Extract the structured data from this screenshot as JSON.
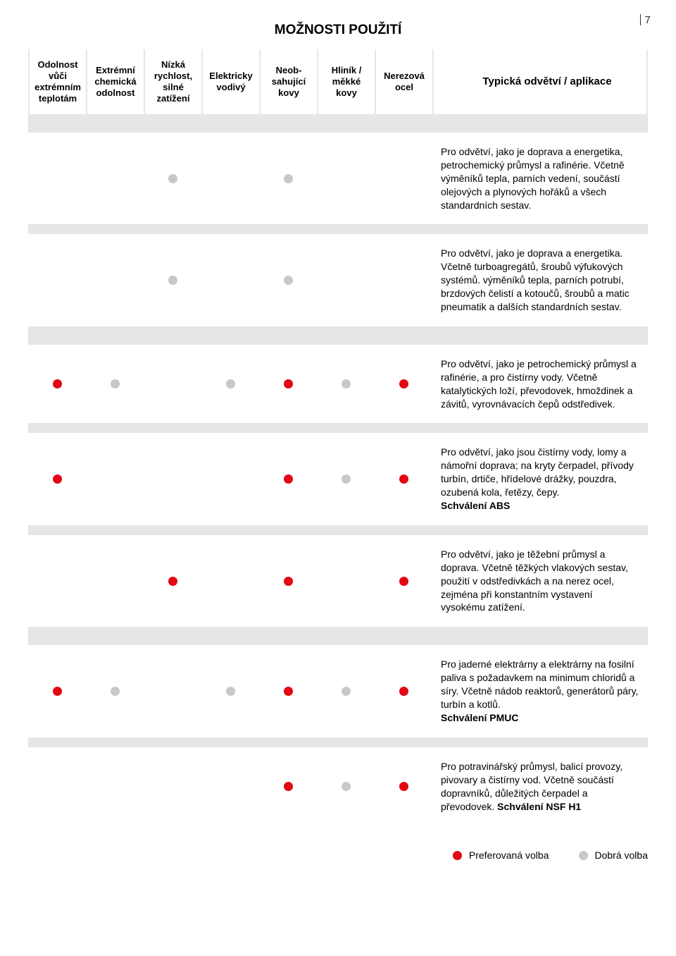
{
  "page_number": "7",
  "title": "MOŽNOSTI POUŽITÍ",
  "colors": {
    "red": "#e30613",
    "grey": "#c8c8c8",
    "band": "#e6e6e6",
    "text": "#000000",
    "bg": "#ffffff"
  },
  "columns": [
    "Odolnost vůči extrémním teplotám",
    "Extrémní chemická odolnost",
    "Nízká rychlost, silné zatížení",
    "Elektricky vodivý",
    "Neob­sahující kovy",
    "Hliník / měkké kovy",
    "Nerezová ocel",
    "Typická odvětví / aplikace"
  ],
  "legend": {
    "preferred": "Preferovaná volba",
    "good": "Dobrá volba"
  },
  "rows": [
    {
      "dots": [
        "",
        "",
        "grey",
        "",
        "grey",
        "",
        ""
      ],
      "text": "Pro odvětví, jako je doprava a energetika, petrochemický průmysl a rafinérie. Včetně výměníků tepla, parních vedení, součástí olejových a plynových hořáků a všech standardních sestav."
    },
    {
      "dots": [
        "",
        "",
        "grey",
        "",
        "grey",
        "",
        ""
      ],
      "text": "Pro odvětví, jako je doprava a energetika. Včetně turboagregátů, šroubů výfukových systémů. výměníků tepla, parních potrubí, brzdových čelistí a kotoučů, šroubů a matic pneumatik a dalších standardních sestav."
    },
    {
      "dots": [
        "red",
        "grey",
        "",
        "grey",
        "red",
        "grey",
        "red"
      ],
      "text": "Pro odvětví, jako je petrochemický průmysl a rafinérie, a pro čistírny vody. Včetně katalytických loží, převodovek, hmoždinek a závitů, vyrovnávacích čepů odstředivek."
    },
    {
      "dots": [
        "red",
        "",
        "",
        "",
        "red",
        "grey",
        "red"
      ],
      "text_html": "Pro odvětví, jako jsou čistírny vody, lomy a námořní doprava; na kryty čerpadel, přívody turbín, drtiče, hřídelové drážky, pouzdra, ozubená kola, řetězy, čepy.<br><b>Schválení ABS</b>"
    },
    {
      "dots": [
        "",
        "",
        "red",
        "",
        "red",
        "",
        "red"
      ],
      "text": "Pro odvětví, jako je těžební průmysl a doprava. Včetně těžkých vlakových sestav, použití v odstředivkách a na nerez ocel, zejména při konstantním vystavení vysokému zatížení."
    },
    {
      "dots": [
        "red",
        "grey",
        "",
        "grey",
        "red",
        "grey",
        "red"
      ],
      "text_html": "Pro jaderné elektrárny a elektrárny na fosilní paliva s požadavkem na minimum chloridů a síry. Včetně nádob reaktorů, generátorů páry, turbín a kotlů.<br><b>Schválení PMUC</b>"
    },
    {
      "dots": [
        "",
        "",
        "",
        "",
        "red",
        "grey",
        "red"
      ],
      "text_html": "Pro potravinářský průmysl, balicí provozy, pivovary a čistírny vod. Včetně součástí dopravníků, důležitých čerpadel a převodovek. <b>Schválení NSF H1</b>"
    }
  ],
  "bands_after": {
    "header": true,
    "row_indices_with_tall_band_before": [
      0,
      2,
      5
    ],
    "row_indices_with_band_after": [
      0,
      1,
      2,
      3,
      4,
      5
    ]
  }
}
